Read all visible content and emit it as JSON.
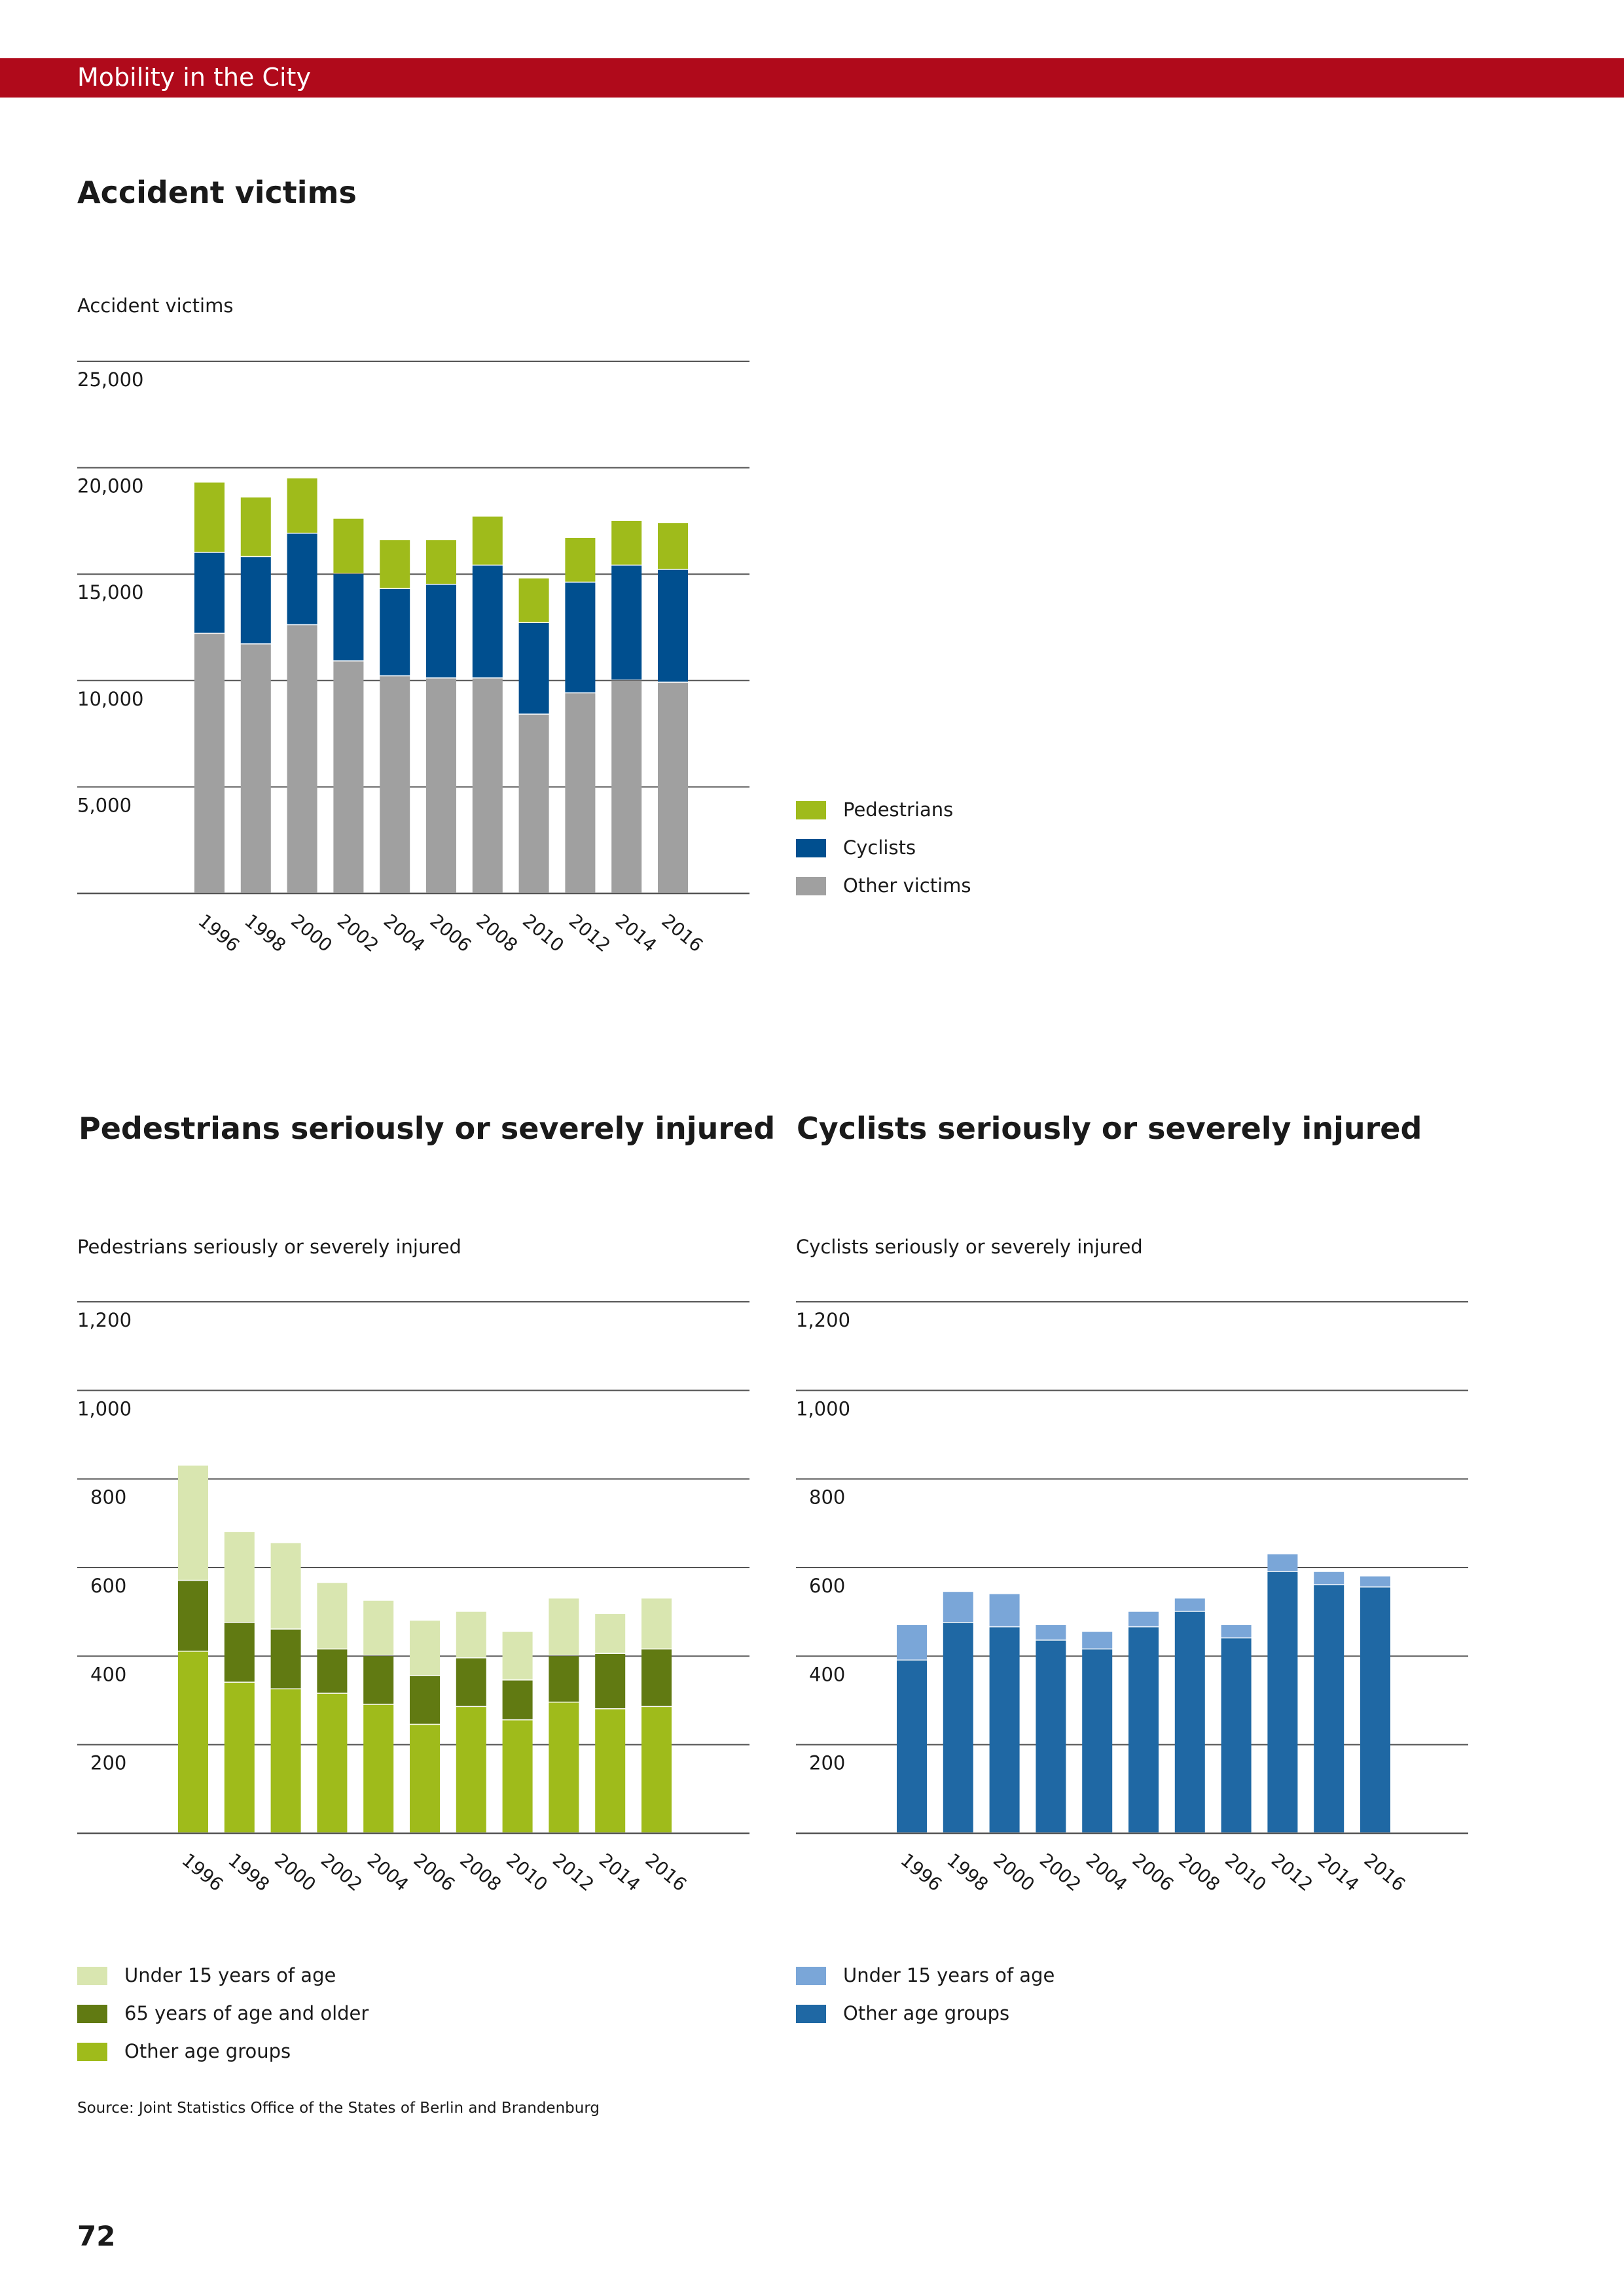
{
  "header": {
    "title": "Mobility in the City",
    "color": "#b00a1b"
  },
  "colors": {
    "pedestrians": "#9fbb1b",
    "cyclists": "#004f8f",
    "other_victims": "#a0a0a0",
    "under15_ped": "#d9e6b0",
    "age65_ped": "#617a12",
    "other_age_ped": "#9fbb1b",
    "under15_cyc": "#7aa6d8",
    "other_age_cyc": "#1f68a4"
  },
  "charts": {
    "accidents": {
      "heading": "Accident victims",
      "caption": "Accident victims",
      "legend": [
        {
          "label": "Pedestrians",
          "color": "#9fbb1b"
        },
        {
          "label": "Cyclists",
          "color": "#004f8f"
        },
        {
          "label": "Other victims",
          "color": "#a0a0a0"
        }
      ]
    },
    "pedestrians": {
      "heading": "Pedestrians seriously or severely injured",
      "caption": "Pedestrians seriously or severely injured",
      "legend": [
        {
          "label": "Under 15 years of age",
          "color": "#d9e6b0"
        },
        {
          "label": "65 years of age and older",
          "color": "#617a12"
        },
        {
          "label": "Other age groups",
          "color": "#9fbb1b"
        }
      ]
    },
    "cyclists": {
      "heading": "Cyclists seriously or severely injured",
      "caption": "Cyclists seriously or severely injured",
      "legend": [
        {
          "label": "Under 15 years of age",
          "color": "#7aa6d8"
        },
        {
          "label": "Other age groups",
          "color": "#1f68a4"
        }
      ]
    }
  },
  "chart_data": [
    {
      "type": "bar",
      "stacked": true,
      "title": "Accident victims",
      "ylabel": "Accident victims",
      "ylim": [
        0,
        25000
      ],
      "yticks": [
        "5,000",
        "10,000",
        "15,000",
        "20,000",
        "25,000"
      ],
      "ytick_values": [
        5000,
        10000,
        15000,
        20000,
        25000
      ],
      "categories": [
        "1996",
        "1998",
        "2000",
        "2002",
        "2004",
        "2006",
        "2008",
        "2010",
        "2012",
        "2014",
        "2016"
      ],
      "grid": true,
      "legend_position": "right",
      "series": [
        {
          "name": "Other victims",
          "color": "#a0a0a0",
          "values": [
            12200,
            11700,
            12600,
            10900,
            10200,
            10100,
            10100,
            8400,
            9400,
            10000,
            9900
          ]
        },
        {
          "name": "Cyclists",
          "color": "#004f8f",
          "values": [
            3800,
            4100,
            4300,
            4100,
            4100,
            4400,
            5300,
            4300,
            5200,
            5400,
            5300
          ]
        },
        {
          "name": "Pedestrians",
          "color": "#9fbb1b",
          "values": [
            3300,
            2800,
            2600,
            2600,
            2300,
            2100,
            2300,
            2100,
            2100,
            2100,
            2200
          ]
        }
      ]
    },
    {
      "type": "bar",
      "stacked": true,
      "title": "Pedestrians seriously or severely injured",
      "ylabel": "Pedestrians seriously or severely injured",
      "ylim": [
        0,
        1200
      ],
      "yticks": [
        "200",
        "400",
        "600",
        "800",
        "1,000",
        "1,200"
      ],
      "ytick_values": [
        200,
        400,
        600,
        800,
        1000,
        1200
      ],
      "categories": [
        "1996",
        "1998",
        "2000",
        "2002",
        "2004",
        "2006",
        "2008",
        "2010",
        "2012",
        "2014",
        "2016"
      ],
      "grid": true,
      "legend_position": "bottom-left",
      "series": [
        {
          "name": "Other age groups",
          "color": "#9fbb1b",
          "values": [
            410,
            340,
            325,
            315,
            290,
            245,
            285,
            255,
            295,
            280,
            285
          ]
        },
        {
          "name": "65 years of age and older",
          "color": "#617a12",
          "values": [
            160,
            135,
            135,
            100,
            110,
            110,
            110,
            90,
            105,
            125,
            130
          ]
        },
        {
          "name": "Under 15 years of age",
          "color": "#d9e6b0",
          "values": [
            260,
            205,
            195,
            150,
            125,
            125,
            105,
            110,
            130,
            90,
            115
          ]
        }
      ]
    },
    {
      "type": "bar",
      "stacked": true,
      "title": "Cyclists seriously or severely injured",
      "ylabel": "Cyclists seriously or severely injured",
      "ylim": [
        0,
        1200
      ],
      "yticks": [
        "200",
        "400",
        "600",
        "800",
        "1,000",
        "1,200"
      ],
      "ytick_values": [
        200,
        400,
        600,
        800,
        1000,
        1200
      ],
      "categories": [
        "1996",
        "1998",
        "2000",
        "2002",
        "2004",
        "2006",
        "2008",
        "2010",
        "2012",
        "2014",
        "2016"
      ],
      "grid": true,
      "legend_position": "bottom-left",
      "series": [
        {
          "name": "Other age groups",
          "color": "#1f68a4",
          "values": [
            390,
            475,
            465,
            435,
            415,
            465,
            500,
            440,
            590,
            560,
            555
          ]
        },
        {
          "name": "Under 15 years of age",
          "color": "#7aa6d8",
          "values": [
            80,
            70,
            75,
            35,
            40,
            35,
            30,
            30,
            40,
            30,
            25
          ]
        }
      ]
    }
  ],
  "footer": {
    "source": "Source: Joint Statistics Office of the States of Berlin and Brandenburg",
    "page_number": "72"
  }
}
